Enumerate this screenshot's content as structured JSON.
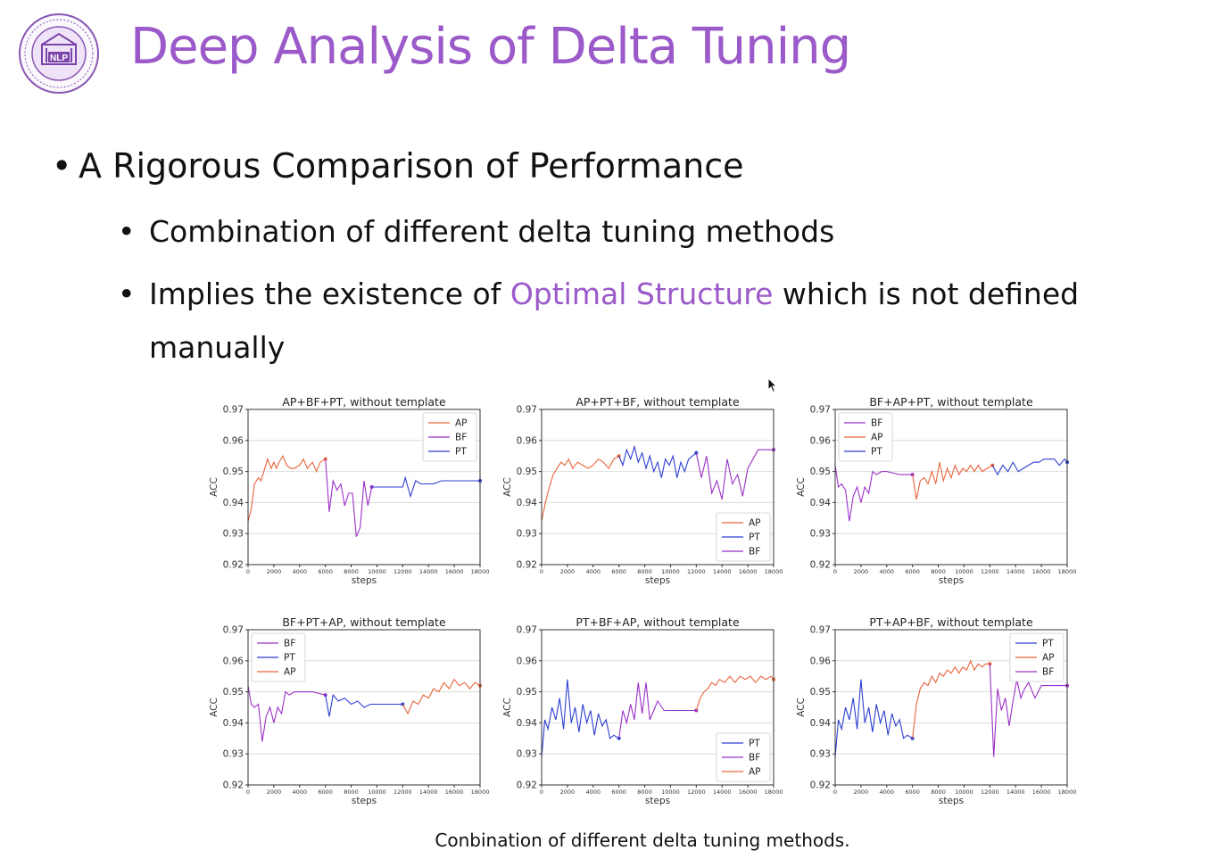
{
  "slide": {
    "title": "Deep Analysis of Delta Tuning",
    "bullet_main": "A Rigorous Comparison of Performance",
    "sub1": "Combination of different delta tuning methods",
    "sub2_pre": "Implies the existence of ",
    "sub2_accent": "Optimal Structure",
    "sub2_post": " which is not defined",
    "sub2_cont": "manually",
    "caption": "Conbination of different delta tuning methods.",
    "bullet_char": "•"
  },
  "colors": {
    "AP": "#e8643a",
    "BF": "#9b30c8",
    "PT": "#2c3fd0",
    "accent": "#9b59c9"
  },
  "chart_data": [
    {
      "type": "line",
      "title": "AP+BF+PT, without template",
      "xlabel": "steps",
      "ylabel": "ACC",
      "xlim": [
        0,
        18000
      ],
      "ylim": [
        0.92,
        0.97
      ],
      "xticks": [
        0,
        2000,
        4000,
        6000,
        8000,
        10000,
        12000,
        14000,
        16000,
        18000
      ],
      "yticks": [
        0.92,
        0.93,
        0.94,
        0.95,
        0.96,
        0.97
      ],
      "legend_position": "upper-right",
      "series": [
        {
          "name": "AP",
          "x": [
            0,
            250,
            500,
            800,
            1000,
            1300,
            1500,
            1800,
            2000,
            2200,
            2400,
            2700,
            3000,
            3300,
            3600,
            4000,
            4300,
            4600,
            5000,
            5300,
            5600,
            6000
          ],
          "y": [
            0.934,
            0.938,
            0.946,
            0.948,
            0.947,
            0.951,
            0.954,
            0.951,
            0.953,
            0.951,
            0.953,
            0.955,
            0.952,
            0.951,
            0.951,
            0.952,
            0.954,
            0.951,
            0.953,
            0.95,
            0.953,
            0.954
          ]
        },
        {
          "name": "BF",
          "x": [
            6000,
            6300,
            6600,
            6900,
            7200,
            7500,
            7800,
            8100,
            8400,
            8700,
            9000,
            9300,
            9600
          ],
          "y": [
            0.954,
            0.937,
            0.947,
            0.944,
            0.946,
            0.939,
            0.943,
            0.943,
            0.929,
            0.932,
            0.947,
            0.939,
            0.945
          ]
        },
        {
          "name": "PT",
          "x": [
            9600,
            10000,
            11000,
            12000,
            12200,
            12600,
            13000,
            13400,
            14000,
            14400,
            15000,
            16000,
            17000,
            18000
          ],
          "y": [
            0.945,
            0.945,
            0.945,
            0.945,
            0.948,
            0.942,
            0.947,
            0.946,
            0.946,
            0.946,
            0.947,
            0.947,
            0.947,
            0.947
          ]
        }
      ]
    },
    {
      "type": "line",
      "title": "AP+PT+BF, without template",
      "xlabel": "steps",
      "ylabel": "ACC",
      "xlim": [
        0,
        18000
      ],
      "ylim": [
        0.92,
        0.97
      ],
      "xticks": [
        0,
        2000,
        4000,
        6000,
        8000,
        10000,
        12000,
        14000,
        16000,
        18000
      ],
      "yticks": [
        0.92,
        0.93,
        0.94,
        0.95,
        0.96,
        0.97
      ],
      "legend_position": "lower-right",
      "series": [
        {
          "name": "AP",
          "x": [
            0,
            300,
            600,
            900,
            1200,
            1500,
            1800,
            2100,
            2400,
            2800,
            3200,
            3600,
            4000,
            4400,
            4800,
            5200,
            5600,
            6000
          ],
          "y": [
            0.934,
            0.94,
            0.945,
            0.949,
            0.951,
            0.953,
            0.952,
            0.954,
            0.951,
            0.953,
            0.952,
            0.951,
            0.952,
            0.954,
            0.953,
            0.951,
            0.954,
            0.955
          ]
        },
        {
          "name": "PT",
          "x": [
            6000,
            6300,
            6600,
            6900,
            7200,
            7500,
            7800,
            8100,
            8400,
            8700,
            9000,
            9300,
            9600,
            9900,
            10200,
            10500,
            10800,
            11100,
            11400,
            12000
          ],
          "y": [
            0.955,
            0.952,
            0.957,
            0.954,
            0.958,
            0.953,
            0.956,
            0.951,
            0.955,
            0.95,
            0.953,
            0.948,
            0.954,
            0.952,
            0.955,
            0.948,
            0.953,
            0.95,
            0.954,
            0.956
          ]
        },
        {
          "name": "BF",
          "x": [
            12000,
            12400,
            12800,
            13200,
            13600,
            14000,
            14400,
            14800,
            15200,
            15600,
            16000,
            16400,
            16800,
            17200,
            18000
          ],
          "y": [
            0.956,
            0.948,
            0.955,
            0.943,
            0.947,
            0.941,
            0.954,
            0.946,
            0.949,
            0.942,
            0.951,
            0.954,
            0.957,
            0.957,
            0.957
          ]
        }
      ]
    },
    {
      "type": "line",
      "title": "BF+AP+PT, without template",
      "xlabel": "steps",
      "ylabel": "ACC",
      "xlim": [
        0,
        18000
      ],
      "ylim": [
        0.92,
        0.97
      ],
      "xticks": [
        0,
        2000,
        4000,
        6000,
        8000,
        10000,
        12000,
        14000,
        16000,
        18000
      ],
      "yticks": [
        0.92,
        0.93,
        0.94,
        0.95,
        0.96,
        0.97
      ],
      "legend_position": "upper-left",
      "series": [
        {
          "name": "BF",
          "x": [
            0,
            250,
            500,
            800,
            1100,
            1400,
            1700,
            2000,
            2300,
            2600,
            2900,
            3200,
            3600,
            4000,
            5000,
            6000
          ],
          "y": [
            0.952,
            0.945,
            0.946,
            0.944,
            0.934,
            0.942,
            0.945,
            0.94,
            0.945,
            0.943,
            0.95,
            0.949,
            0.95,
            0.95,
            0.949,
            0.949
          ]
        },
        {
          "name": "AP",
          "x": [
            6000,
            6300,
            6600,
            6900,
            7200,
            7500,
            7800,
            8100,
            8400,
            8700,
            9000,
            9300,
            9600,
            9900,
            10200,
            10500,
            10800,
            11100,
            11400,
            11800,
            12200
          ],
          "y": [
            0.949,
            0.941,
            0.947,
            0.948,
            0.946,
            0.95,
            0.946,
            0.953,
            0.947,
            0.951,
            0.948,
            0.952,
            0.949,
            0.951,
            0.95,
            0.952,
            0.95,
            0.952,
            0.95,
            0.951,
            0.952
          ]
        },
        {
          "name": "PT",
          "x": [
            12200,
            12600,
            13000,
            13400,
            13800,
            14200,
            14600,
            15000,
            15400,
            15800,
            16200,
            16600,
            17000,
            17400,
            17800,
            18000
          ],
          "y": [
            0.952,
            0.949,
            0.952,
            0.95,
            0.953,
            0.95,
            0.951,
            0.952,
            0.953,
            0.953,
            0.954,
            0.954,
            0.954,
            0.952,
            0.954,
            0.953
          ]
        }
      ]
    },
    {
      "type": "line",
      "title": "BF+PT+AP, without template",
      "xlabel": "steps",
      "ylabel": "ACC",
      "xlim": [
        0,
        18000
      ],
      "ylim": [
        0.92,
        0.97
      ],
      "xticks": [
        0,
        2000,
        4000,
        6000,
        8000,
        10000,
        12000,
        14000,
        16000,
        18000
      ],
      "yticks": [
        0.92,
        0.93,
        0.94,
        0.95,
        0.96,
        0.97
      ],
      "legend_position": "upper-left",
      "series": [
        {
          "name": "BF",
          "x": [
            0,
            250,
            500,
            800,
            1100,
            1400,
            1700,
            2000,
            2300,
            2600,
            2900,
            3200,
            3600,
            4000,
            5000,
            6000
          ],
          "y": [
            0.952,
            0.946,
            0.945,
            0.946,
            0.934,
            0.942,
            0.945,
            0.94,
            0.945,
            0.943,
            0.95,
            0.949,
            0.95,
            0.95,
            0.95,
            0.949
          ]
        },
        {
          "name": "PT",
          "x": [
            6000,
            6300,
            6600,
            7000,
            7500,
            8000,
            8500,
            9000,
            9500,
            10000,
            11000,
            12000
          ],
          "y": [
            0.949,
            0.942,
            0.949,
            0.947,
            0.948,
            0.946,
            0.947,
            0.945,
            0.946,
            0.946,
            0.946,
            0.946
          ]
        },
        {
          "name": "AP",
          "x": [
            12000,
            12400,
            12800,
            13200,
            13600,
            14000,
            14400,
            14800,
            15200,
            15600,
            16000,
            16400,
            16800,
            17200,
            17600,
            18000
          ],
          "y": [
            0.946,
            0.943,
            0.947,
            0.946,
            0.949,
            0.948,
            0.951,
            0.95,
            0.953,
            0.951,
            0.954,
            0.952,
            0.953,
            0.951,
            0.953,
            0.952
          ]
        }
      ]
    },
    {
      "type": "line",
      "title": "PT+BF+AP, without template",
      "xlabel": "steps",
      "ylabel": "ACC",
      "xlim": [
        0,
        18000
      ],
      "ylim": [
        0.92,
        0.97
      ],
      "xticks": [
        0,
        2000,
        4000,
        6000,
        8000,
        10000,
        12000,
        14000,
        16000,
        18000
      ],
      "yticks": [
        0.92,
        0.93,
        0.94,
        0.95,
        0.96,
        0.97
      ],
      "legend_position": "lower-right",
      "series": [
        {
          "name": "PT",
          "x": [
            0,
            250,
            500,
            800,
            1100,
            1400,
            1700,
            2000,
            2300,
            2600,
            2900,
            3200,
            3500,
            3800,
            4100,
            4400,
            4700,
            5000,
            5300,
            5600,
            6000
          ],
          "y": [
            0.929,
            0.941,
            0.938,
            0.945,
            0.941,
            0.948,
            0.938,
            0.954,
            0.94,
            0.945,
            0.937,
            0.946,
            0.94,
            0.944,
            0.936,
            0.943,
            0.939,
            0.941,
            0.935,
            0.936,
            0.935
          ]
        },
        {
          "name": "BF",
          "x": [
            6000,
            6300,
            6600,
            6900,
            7200,
            7500,
            7800,
            8100,
            8400,
            8700,
            9000,
            9500,
            10000,
            11000,
            12000
          ],
          "y": [
            0.935,
            0.944,
            0.94,
            0.946,
            0.941,
            0.953,
            0.943,
            0.953,
            0.941,
            0.944,
            0.947,
            0.944,
            0.944,
            0.944,
            0.944
          ]
        },
        {
          "name": "AP",
          "x": [
            12000,
            12300,
            12600,
            12900,
            13200,
            13500,
            13800,
            14200,
            14600,
            15000,
            15400,
            15800,
            16200,
            16600,
            17000,
            17400,
            17800,
            18000
          ],
          "y": [
            0.944,
            0.948,
            0.95,
            0.951,
            0.953,
            0.952,
            0.954,
            0.953,
            0.955,
            0.953,
            0.955,
            0.954,
            0.955,
            0.953,
            0.955,
            0.954,
            0.955,
            0.954
          ]
        }
      ]
    },
    {
      "type": "line",
      "title": "PT+AP+BF, without template",
      "xlabel": "steps",
      "ylabel": "ACC",
      "xlim": [
        0,
        18000
      ],
      "ylim": [
        0.92,
        0.97
      ],
      "xticks": [
        0,
        2000,
        4000,
        6000,
        8000,
        10000,
        12000,
        14000,
        16000,
        18000
      ],
      "yticks": [
        0.92,
        0.93,
        0.94,
        0.95,
        0.96,
        0.97
      ],
      "legend_position": "upper-right",
      "series": [
        {
          "name": "PT",
          "x": [
            0,
            250,
            500,
            800,
            1100,
            1400,
            1700,
            2000,
            2300,
            2600,
            2900,
            3200,
            3500,
            3800,
            4100,
            4400,
            4700,
            5000,
            5300,
            5600,
            6000
          ],
          "y": [
            0.929,
            0.941,
            0.938,
            0.945,
            0.941,
            0.948,
            0.938,
            0.954,
            0.94,
            0.945,
            0.937,
            0.946,
            0.94,
            0.944,
            0.936,
            0.943,
            0.939,
            0.941,
            0.935,
            0.936,
            0.935
          ]
        },
        {
          "name": "AP",
          "x": [
            6000,
            6300,
            6600,
            6900,
            7200,
            7500,
            7800,
            8100,
            8400,
            8700,
            9000,
            9300,
            9600,
            9900,
            10200,
            10500,
            10800,
            11100,
            11400,
            11700,
            12000
          ],
          "y": [
            0.935,
            0.946,
            0.951,
            0.953,
            0.952,
            0.955,
            0.953,
            0.956,
            0.955,
            0.957,
            0.956,
            0.958,
            0.956,
            0.958,
            0.957,
            0.96,
            0.957,
            0.959,
            0.958,
            0.959,
            0.959
          ]
        },
        {
          "name": "BF",
          "x": [
            12000,
            12300,
            12600,
            12900,
            13200,
            13500,
            13800,
            14100,
            14400,
            14700,
            15000,
            15500,
            16000,
            17000,
            18000
          ],
          "y": [
            0.959,
            0.929,
            0.951,
            0.944,
            0.948,
            0.939,
            0.947,
            0.954,
            0.948,
            0.951,
            0.953,
            0.948,
            0.952,
            0.952,
            0.952
          ]
        }
      ]
    }
  ]
}
